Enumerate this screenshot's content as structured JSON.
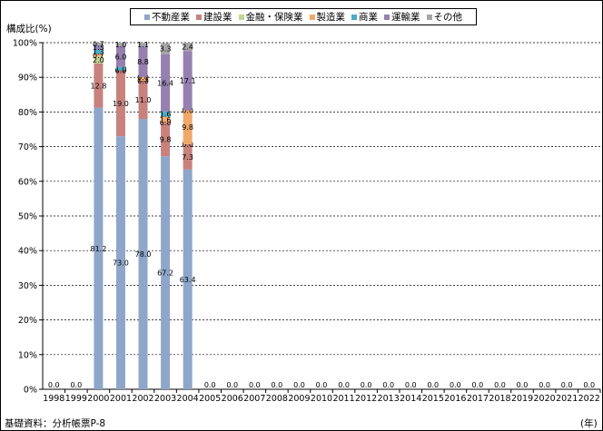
{
  "chart_data": {
    "type": "bar",
    "stacked": true,
    "ylabel": "構成比(%)",
    "xunit": "(年)",
    "source": "基礎資料：分析帳票P-8",
    "ylim": [
      0,
      100
    ],
    "yticks": [
      "0%",
      "10%",
      "20%",
      "30%",
      "40%",
      "50%",
      "60%",
      "70%",
      "80%",
      "90%",
      "100%"
    ],
    "grid": true,
    "legend_position": "top",
    "categories": [
      "1998",
      "1999",
      "2000",
      "2001",
      "2002",
      "2003",
      "2004",
      "2005",
      "2006",
      "2007",
      "2008",
      "2009",
      "2010",
      "2011",
      "2012",
      "2013",
      "2014",
      "2015",
      "2016",
      "2017",
      "2018",
      "2019",
      "2020",
      "2021",
      "2022"
    ],
    "series": [
      {
        "name": "不動産業",
        "color": "#8ea6c9",
        "values": [
          0,
          0,
          81.2,
          73.0,
          78.0,
          67.2,
          63.4,
          0,
          0,
          0,
          0,
          0,
          0,
          0,
          0,
          0,
          0,
          0,
          0,
          0,
          0,
          0,
          0,
          0,
          0
        ]
      },
      {
        "name": "建設業",
        "color": "#c8827e",
        "values": [
          0,
          0,
          12.8,
          19.0,
          11.0,
          9.8,
          7.3,
          0,
          0,
          0,
          0,
          0,
          0,
          0,
          0,
          0,
          0,
          0,
          0,
          0,
          0,
          0,
          0,
          0,
          0
        ]
      },
      {
        "name": "金融・保険業",
        "color": "#c3d494",
        "values": [
          0,
          0,
          2.0,
          0.0,
          0.0,
          0.0,
          0.0,
          0,
          0,
          0,
          0,
          0,
          0,
          0,
          0,
          0,
          0,
          0,
          0,
          0,
          0,
          0,
          0,
          0,
          0
        ]
      },
      {
        "name": "製造業",
        "color": "#f0a869",
        "values": [
          0,
          0,
          0.7,
          0.0,
          1.1,
          1.6,
          9.8,
          0,
          0,
          0,
          0,
          0,
          0,
          0,
          0,
          0,
          0,
          0,
          0,
          0,
          0,
          0,
          0,
          0,
          0
        ]
      },
      {
        "name": "商業",
        "color": "#4bacc6",
        "values": [
          0,
          0,
          1.3,
          1.0,
          0.0,
          1.6,
          0.0,
          0,
          0,
          0,
          0,
          0,
          0,
          0,
          0,
          0,
          0,
          0,
          0,
          0,
          0,
          0,
          0,
          0,
          0
        ]
      },
      {
        "name": "運輸業",
        "color": "#9580b0",
        "values": [
          0,
          0,
          1.3,
          6.0,
          8.8,
          16.4,
          17.1,
          0,
          0,
          0,
          0,
          0,
          0,
          0,
          0,
          0,
          0,
          0,
          0,
          0,
          0,
          0,
          0,
          0,
          0
        ]
      },
      {
        "name": "その他",
        "color": "#a6a6a6",
        "values": [
          0,
          0,
          0.7,
          1.0,
          1.1,
          3.3,
          2.4,
          0,
          0,
          0,
          0,
          0,
          0,
          0,
          0,
          0,
          0,
          0,
          0,
          0,
          0,
          0,
          0,
          0,
          0
        ]
      }
    ]
  }
}
